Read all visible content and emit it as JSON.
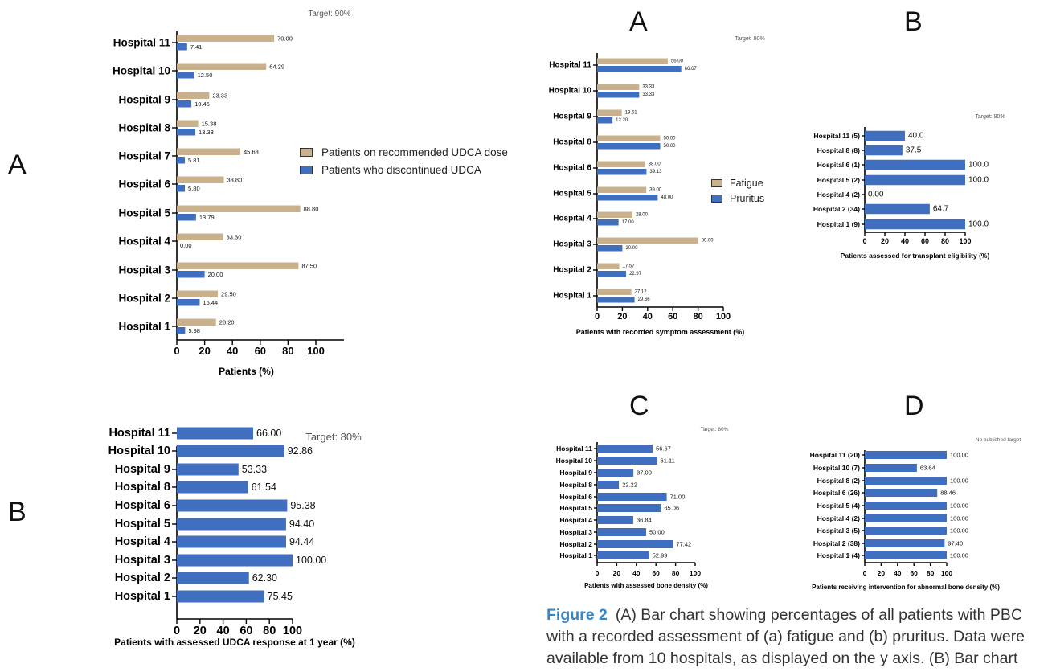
{
  "panel_letters": {
    "fig1_a": "A",
    "fig1_b": "B",
    "fig2_a": "A",
    "fig2_b": "B",
    "fig2_c": "C",
    "fig2_d": "D"
  },
  "caption": {
    "figure_label": "Figure 2",
    "text_lines": [
      "(A) Bar chart showing percentages of all patients with PBC",
      "with a recorded assessment of (a) fatigue and (b) pruritus. Data were",
      "available from 10 hospitals, as displayed on the y axis. (B) Bar chart"
    ]
  },
  "colors": {
    "tan": "#c8b18c",
    "blue": "#3f6fbe"
  },
  "chart_data": [
    {
      "id": "udca_dose",
      "type": "bar",
      "orientation": "horizontal",
      "target_label": "Target: 90%",
      "categories": [
        "Hospital 1",
        "Hospital 2",
        "Hospital 3",
        "Hospital 4",
        "Hospital 5",
        "Hospital 6",
        "Hospital 7",
        "Hospital 8",
        "Hospital 9",
        "Hospital 10",
        "Hospital 11"
      ],
      "series": [
        {
          "name": "Patients on recommended UDCA dose",
          "color": "#c8b18c",
          "values": [
            28.2,
            29.5,
            87.5,
            33.3,
            88.8,
            33.8,
            45.68,
            15.38,
            23.33,
            64.29,
            70.0
          ],
          "labels": [
            "28.20",
            "29.50",
            "87.50",
            "33.30",
            "88.80",
            "33.80",
            "45.68",
            "15.38",
            "23.33",
            "64.29",
            "70.00"
          ]
        },
        {
          "name": "Patients who discontinued UDCA",
          "color": "#3f6fbe",
          "values": [
            5.98,
            16.44,
            20.0,
            0.0,
            13.79,
            5.8,
            5.81,
            13.33,
            10.45,
            12.5,
            7.41
          ],
          "labels": [
            "5.98",
            "16.44",
            "20.00",
            "0.00",
            "13.79",
            "5.80",
            "5.81",
            "13.33",
            "10.45",
            "12.50",
            "7.41"
          ]
        }
      ],
      "xlabel": "Patients (%)",
      "ylabel": "",
      "xlim": [
        0,
        100
      ],
      "xticks": [
        "0",
        "20",
        "40",
        "60",
        "80",
        "100"
      ],
      "legend": "right"
    },
    {
      "id": "udca_response",
      "type": "bar",
      "orientation": "horizontal",
      "target_label": "Target: 80%",
      "categories": [
        "Hospital 1",
        "Hospital 2",
        "Hospital 3",
        "Hospital 4",
        "Hospital 5",
        "Hospital 6",
        "Hospital 8",
        "Hospital 9",
        "Hospital 10",
        "Hospital 11"
      ],
      "series": [
        {
          "color": "#3f6fbe",
          "values": [
            75.45,
            62.3,
            100.0,
            94.44,
            94.4,
            95.38,
            61.54,
            53.33,
            92.86,
            66.0
          ],
          "labels": [
            "75.45",
            "62.30",
            "100.00",
            "94.44",
            "94.40",
            "95.38",
            "61.54",
            "53.33",
            "92.86",
            "66.00"
          ]
        }
      ],
      "xlabel": "Patients with assessed UDCA response at 1 year (%)",
      "ylabel": "",
      "xlim": [
        0,
        100
      ],
      "xticks": [
        "0",
        "20",
        "40",
        "60",
        "80",
        "100"
      ]
    },
    {
      "id": "symptom_assessment",
      "type": "bar",
      "orientation": "horizontal",
      "target_label": "Target: 90%",
      "categories": [
        "Hospital 1",
        "Hospital 2",
        "Hospital 3",
        "Hospital 4",
        "Hospital 5",
        "Hospital 6",
        "Hospital 8",
        "Hospital 9",
        "Hospital 10",
        "Hospital 11"
      ],
      "series": [
        {
          "name": "Fatigue",
          "color": "#c8b18c",
          "values": [
            27.12,
            17.57,
            80.0,
            28.0,
            39.0,
            38.0,
            50.0,
            19.51,
            33.33,
            56.0
          ],
          "labels": [
            "27.12",
            "17.57",
            "80.00",
            "28.00",
            "39.00",
            "38.00",
            "50.00",
            "19.51",
            "33.33",
            "56.00"
          ]
        },
        {
          "name": "Pruritus",
          "color": "#3f6fbe",
          "values": [
            29.66,
            22.97,
            20.0,
            17.0,
            48.0,
            39.13,
            50.0,
            12.2,
            33.33,
            66.67
          ],
          "labels": [
            "29.66",
            "22.97",
            "20.00",
            "17.00",
            "48.00",
            "39.13",
            "50.00",
            "12.20",
            "33.33",
            "66.67"
          ]
        }
      ],
      "xlabel": "Patients with recorded symptom assessment (%)",
      "ylabel": "",
      "xlim": [
        0,
        100
      ],
      "xticks": [
        "0",
        "20",
        "40",
        "60",
        "80",
        "100"
      ],
      "legend": "right"
    },
    {
      "id": "transplant_eligibility",
      "type": "bar",
      "orientation": "horizontal",
      "target_label": "Target: 90%",
      "categories": [
        "Hospital 1 (9)",
        "Hospital 2 (34)",
        "Hospital 4 (2)",
        "Hospital 5 (2)",
        "Hospital 6 (1)",
        "Hospital 8 (8)",
        "Hospital 11 (5)"
      ],
      "series": [
        {
          "color": "#3f6fbe",
          "values": [
            100.0,
            64.7,
            0.0,
            100.0,
            100.0,
            37.5,
            40.0
          ],
          "labels": [
            "100.0",
            "64.7",
            "0.00",
            "100.0",
            "100.0",
            "37.5",
            "40.0"
          ]
        }
      ],
      "xlabel": "Patients assessed for transplant eligibility (%)",
      "ylabel": "",
      "xlim": [
        0,
        100
      ],
      "xticks": [
        "0",
        "20",
        "40",
        "60",
        "80",
        "100"
      ]
    },
    {
      "id": "bone_density",
      "type": "bar",
      "orientation": "horizontal",
      "target_label": "Target: 80%",
      "categories": [
        "Hospital 1",
        "Hospital 2",
        "Hospital 3",
        "Hospital 4",
        "Hospital 5",
        "Hospital 6",
        "Hospital 8",
        "Hospital 9",
        "Hospital 10",
        "Hospital 11"
      ],
      "series": [
        {
          "color": "#3f6fbe",
          "values": [
            52.99,
            77.42,
            50.0,
            36.84,
            65.06,
            71.0,
            22.22,
            37.0,
            61.11,
            56.67
          ],
          "labels": [
            "52.99",
            "77.42",
            "50.00",
            "36.84",
            "65.06",
            "71.00",
            "22.22",
            "37.00",
            "61.11",
            "56.67"
          ]
        }
      ],
      "xlabel": "Patients with assessed bone density (%)",
      "ylabel": "",
      "xlim": [
        0,
        100
      ],
      "xticks": [
        "0",
        "20",
        "40",
        "60",
        "80",
        "100"
      ]
    },
    {
      "id": "bone_intervention",
      "type": "bar",
      "orientation": "horizontal",
      "target_label": "No published target",
      "categories": [
        "Hospital 1 (4)",
        "Hospital 2 (38)",
        "Hospital 3 (5)",
        "Hospital 4 (2)",
        "Hospital 5 (4)",
        "Hospital 6 (26)",
        "Hospital 8 (2)",
        "Hospital 10 (7)",
        "Hospital 11 (20)"
      ],
      "series": [
        {
          "color": "#3f6fbe",
          "values": [
            100.0,
            97.4,
            100.0,
            100.0,
            100.0,
            88.46,
            100.0,
            63.64,
            100.0
          ],
          "labels": [
            "100.00",
            "97.40",
            "100.00",
            "100.00",
            "100.00",
            "88.46",
            "100.00",
            "63.64",
            "100.00"
          ]
        }
      ],
      "xlabel": "Patients receiving intervention for abnormal bone density (%)",
      "ylabel": "",
      "xlim": [
        0,
        100
      ],
      "xticks": [
        "0",
        "20",
        "40",
        "60",
        "80",
        "100"
      ]
    }
  ]
}
